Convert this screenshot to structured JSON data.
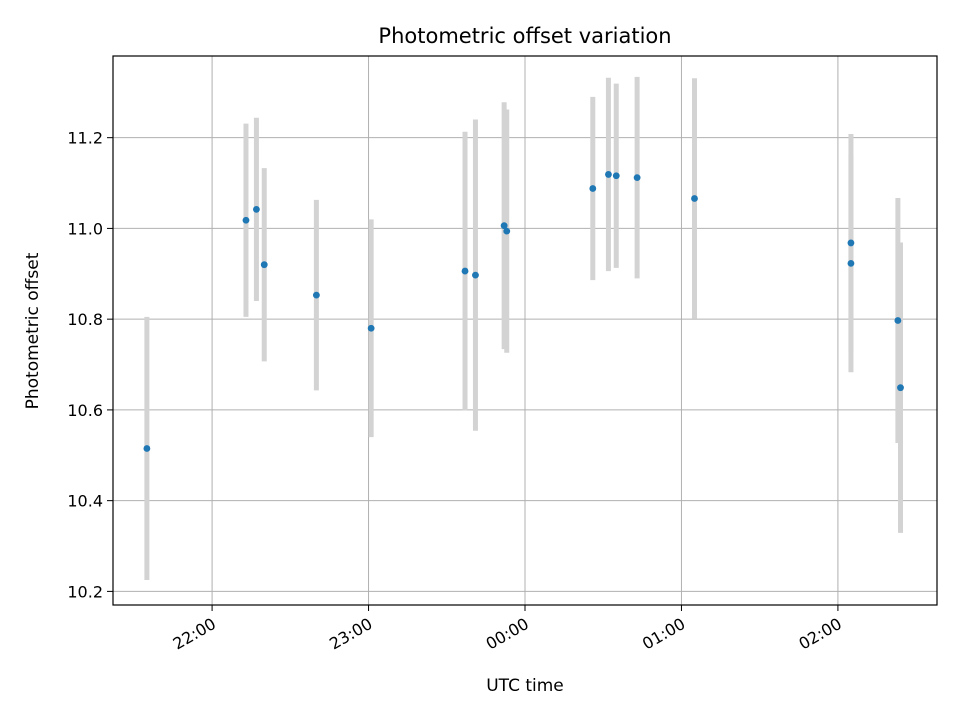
{
  "chart_data": {
    "type": "scatter",
    "title": "Photometric offset variation",
    "xlabel": "UTC time",
    "ylabel": "Photometric offset",
    "x_ticks": [
      "22:00",
      "23:00",
      "00:00",
      "01:00",
      "02:00"
    ],
    "y_ticks": [
      "10.2",
      "10.4",
      "10.6",
      "10.8",
      "11.0",
      "11.2"
    ],
    "xlim": [
      "21:22",
      "02:38"
    ],
    "ylim": [
      10.17,
      11.38
    ],
    "grid": true,
    "point_color": "#1f77b4",
    "errorbar_color": "#d3d3d3",
    "points": [
      {
        "x": "21:35",
        "y": 10.515,
        "err": 0.29
      },
      {
        "x": "22:13",
        "y": 11.018,
        "err": 0.213
      },
      {
        "x": "22:17",
        "y": 11.042,
        "err": 0.202
      },
      {
        "x": "22:20",
        "y": 10.92,
        "err": 0.213
      },
      {
        "x": "22:40",
        "y": 10.853,
        "err": 0.21
      },
      {
        "x": "23:01",
        "y": 10.78,
        "err": 0.24
      },
      {
        "x": "23:37",
        "y": 10.906,
        "err": 0.307
      },
      {
        "x": "23:41",
        "y": 10.897,
        "err": 0.343
      },
      {
        "x": "23:52",
        "y": 11.006,
        "err": 0.272
      },
      {
        "x": "23:53",
        "y": 10.994,
        "err": 0.268
      },
      {
        "x": "00:26",
        "y": 11.088,
        "err": 0.202
      },
      {
        "x": "00:32",
        "y": 11.119,
        "err": 0.213
      },
      {
        "x": "00:35",
        "y": 11.116,
        "err": 0.203
      },
      {
        "x": "00:43",
        "y": 11.112,
        "err": 0.222
      },
      {
        "x": "01:05",
        "y": 11.066,
        "err": 0.265
      },
      {
        "x": "02:05",
        "y": 10.968,
        "err": 0.24
      },
      {
        "x": "02:05",
        "y": 10.923,
        "err": 0.24
      },
      {
        "x": "02:23",
        "y": 10.797,
        "err": 0.27
      },
      {
        "x": "02:24",
        "y": 10.649,
        "err": 0.32
      }
    ]
  }
}
